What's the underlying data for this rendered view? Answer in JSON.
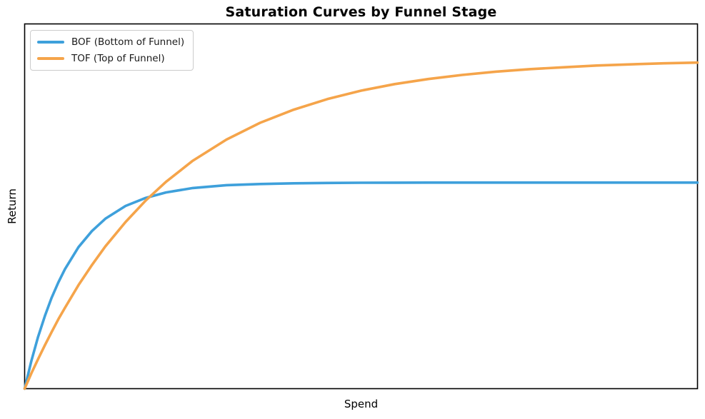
{
  "title": "Saturation Curves by Funnel Stage",
  "xlabel": "Spend",
  "ylabel": "Return",
  "colors": {
    "bof_line": "#3ea0db",
    "tof_line": "#f5a44a",
    "axes_border": "#000000",
    "background": "#ffffff",
    "legend_border": "#cccccc"
  },
  "legend": {
    "position": "upper left",
    "items": [
      {
        "label": "BOF (Bottom of Funnel)",
        "color": "#3ea0db"
      },
      {
        "label": "TOF (Top of Funnel)",
        "color": "#f5a44a"
      }
    ]
  },
  "chart_data": {
    "type": "line",
    "title": "Saturation Curves by Funnel Stage",
    "xlabel": "Spend",
    "ylabel": "Return",
    "xlim": [
      0,
      100
    ],
    "ylim": [
      0,
      1.0
    ],
    "grid": false,
    "tick_labels": "none",
    "legend_position": "upper left",
    "x": [
      0,
      1,
      2,
      3,
      4,
      5,
      6,
      8,
      10,
      12,
      15,
      18,
      21,
      25,
      30,
      35,
      40,
      45,
      50,
      55,
      60,
      65,
      70,
      75,
      80,
      85,
      90,
      95,
      100
    ],
    "series": [
      {
        "name": "BOF (Bottom of Funnel)",
        "color": "#3ea0db",
        "saturation_level": 0.565,
        "values": [
          0,
          0.076,
          0.142,
          0.199,
          0.249,
          0.291,
          0.328,
          0.388,
          0.432,
          0.466,
          0.501,
          0.523,
          0.538,
          0.55,
          0.558,
          0.561,
          0.563,
          0.564,
          0.5646,
          0.5648,
          0.5649,
          0.565,
          0.565,
          0.565,
          0.565,
          0.565,
          0.565,
          0.565,
          0.565
        ]
      },
      {
        "name": "TOF (Top of Funnel)",
        "color": "#f5a44a",
        "saturation_level": 0.902,
        "values": [
          0,
          0.042,
          0.081,
          0.119,
          0.155,
          0.19,
          0.222,
          0.284,
          0.339,
          0.39,
          0.457,
          0.516,
          0.567,
          0.625,
          0.683,
          0.729,
          0.765,
          0.794,
          0.817,
          0.835,
          0.849,
          0.86,
          0.869,
          0.876,
          0.881,
          0.886,
          0.889,
          0.892,
          0.894
        ]
      }
    ]
  }
}
